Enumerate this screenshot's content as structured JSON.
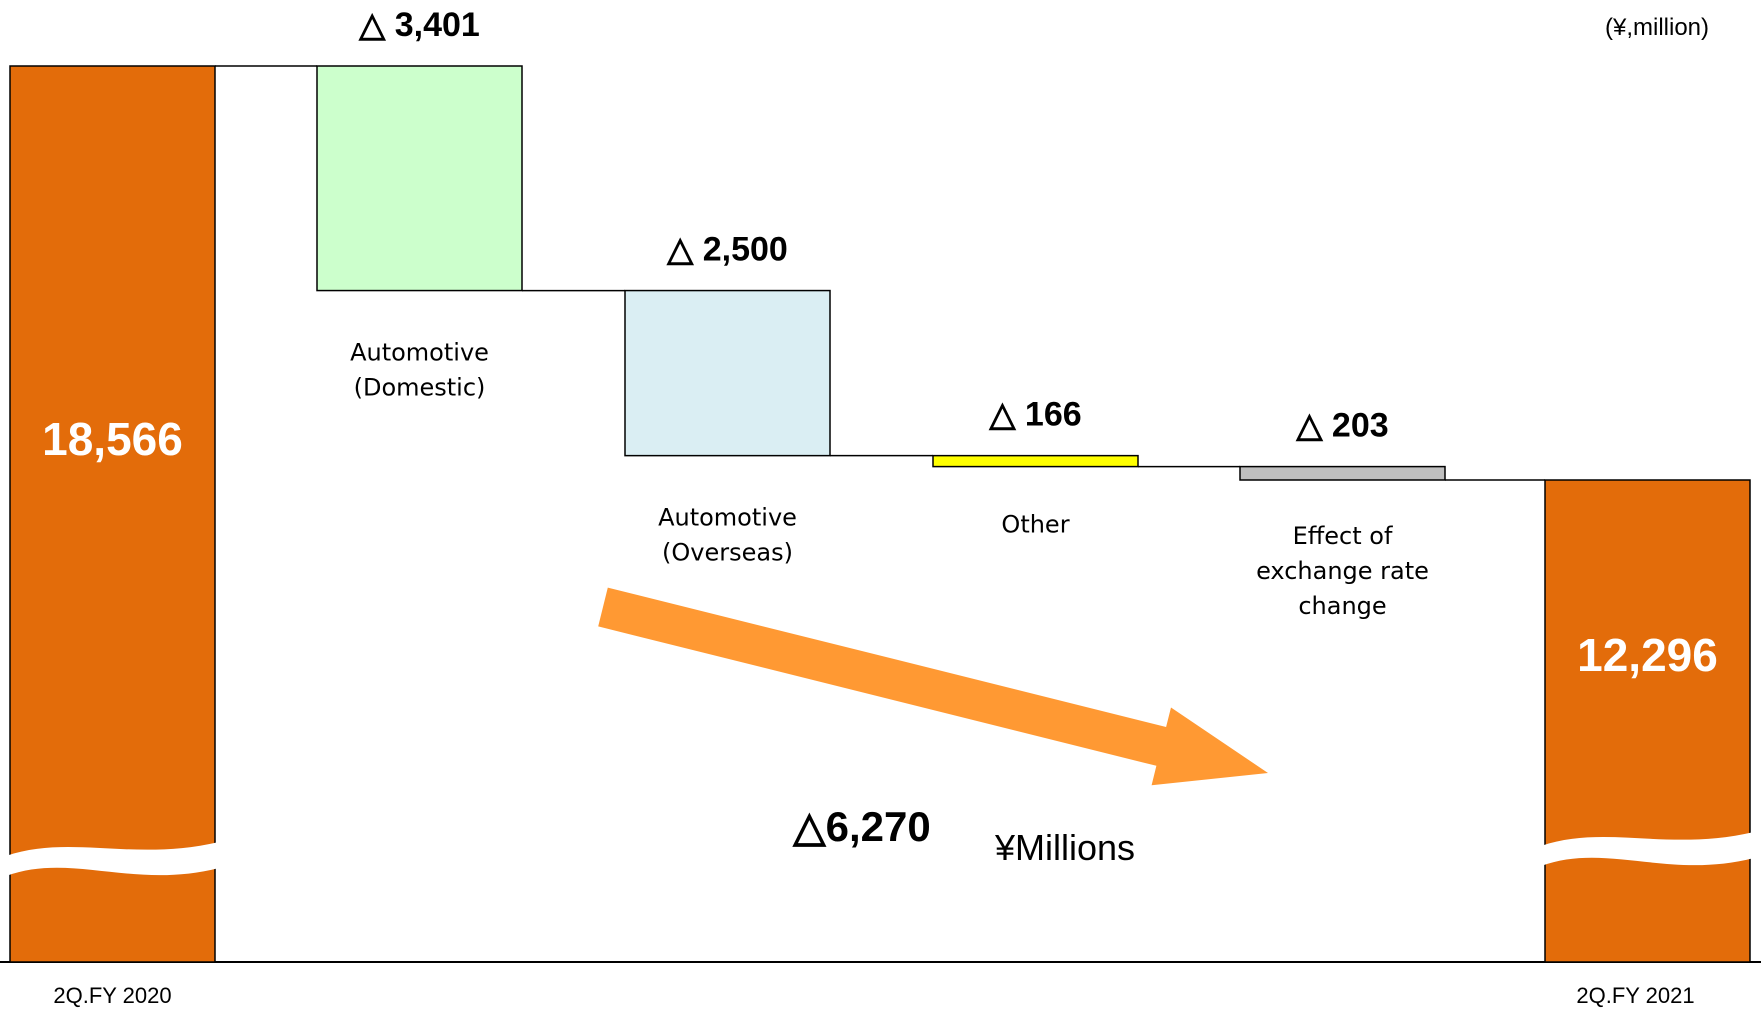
{
  "unit_label": "(¥,million)",
  "chart_data": {
    "type": "bar",
    "subtype": "waterfall",
    "categories": [
      "2Q.FY 2020",
      "Automotive (Domestic)",
      "Automotive (Overseas)",
      "Other",
      "Effect of exchange rate change",
      "2Q.FY 2021"
    ],
    "start": {
      "category": "2Q.FY 2020",
      "value": 18566,
      "label": "18,566",
      "color": "#E36C0A"
    },
    "end": {
      "category": "2Q.FY 2021",
      "value": 12296,
      "label": "12,296",
      "color": "#E36C0A"
    },
    "steps": [
      {
        "name_lines": [
          "Automotive",
          "(Domestic)"
        ],
        "delta": -3401,
        "label": "△ 3,401",
        "color": "#CCFFCC"
      },
      {
        "name_lines": [
          "Automotive",
          "(Overseas)"
        ],
        "delta": -2500,
        "label": "△ 2,500",
        "color": "#DAEEF3"
      },
      {
        "name_lines": [
          "Other"
        ],
        "delta": -166,
        "label": "△ 166",
        "color": "#FFFF00"
      },
      {
        "name_lines": [
          "Effect of",
          "exchange rate",
          "change"
        ],
        "delta": -203,
        "label": "△ 203",
        "color": "#BFBFBF"
      }
    ],
    "axis_break": true,
    "total_change": {
      "value": -6270,
      "label": "△6,270",
      "unit": "¥Millions"
    },
    "trend_arrow_color": "#FF9933"
  }
}
